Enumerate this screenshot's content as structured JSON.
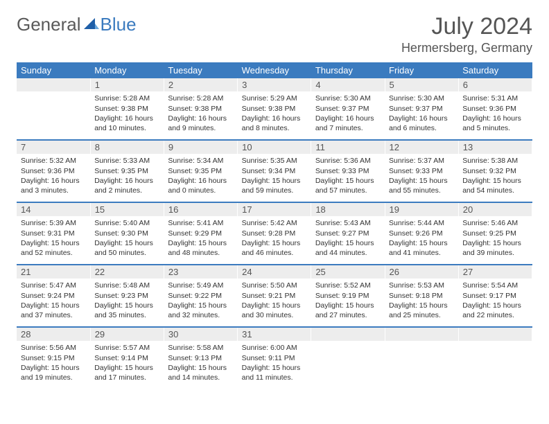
{
  "brand": {
    "part1": "General",
    "part2": "Blue"
  },
  "title": {
    "month": "July 2024",
    "location": "Hermersberg, Germany"
  },
  "colors": {
    "header_bg": "#3b7bbf",
    "header_fg": "#ffffff",
    "daynum_bg": "#ededed",
    "text": "#333333",
    "rule": "#3b7bbf"
  },
  "weekdays": [
    "Sunday",
    "Monday",
    "Tuesday",
    "Wednesday",
    "Thursday",
    "Friday",
    "Saturday"
  ],
  "weeks": [
    {
      "nums": [
        "",
        "1",
        "2",
        "3",
        "4",
        "5",
        "6"
      ],
      "cells": [
        null,
        {
          "sr": "Sunrise: 5:28 AM",
          "ss": "Sunset: 9:38 PM",
          "dl": "Daylight: 16 hours and 10 minutes."
        },
        {
          "sr": "Sunrise: 5:28 AM",
          "ss": "Sunset: 9:38 PM",
          "dl": "Daylight: 16 hours and 9 minutes."
        },
        {
          "sr": "Sunrise: 5:29 AM",
          "ss": "Sunset: 9:38 PM",
          "dl": "Daylight: 16 hours and 8 minutes."
        },
        {
          "sr": "Sunrise: 5:30 AM",
          "ss": "Sunset: 9:37 PM",
          "dl": "Daylight: 16 hours and 7 minutes."
        },
        {
          "sr": "Sunrise: 5:30 AM",
          "ss": "Sunset: 9:37 PM",
          "dl": "Daylight: 16 hours and 6 minutes."
        },
        {
          "sr": "Sunrise: 5:31 AM",
          "ss": "Sunset: 9:36 PM",
          "dl": "Daylight: 16 hours and 5 minutes."
        }
      ]
    },
    {
      "nums": [
        "7",
        "8",
        "9",
        "10",
        "11",
        "12",
        "13"
      ],
      "cells": [
        {
          "sr": "Sunrise: 5:32 AM",
          "ss": "Sunset: 9:36 PM",
          "dl": "Daylight: 16 hours and 3 minutes."
        },
        {
          "sr": "Sunrise: 5:33 AM",
          "ss": "Sunset: 9:35 PM",
          "dl": "Daylight: 16 hours and 2 minutes."
        },
        {
          "sr": "Sunrise: 5:34 AM",
          "ss": "Sunset: 9:35 PM",
          "dl": "Daylight: 16 hours and 0 minutes."
        },
        {
          "sr": "Sunrise: 5:35 AM",
          "ss": "Sunset: 9:34 PM",
          "dl": "Daylight: 15 hours and 59 minutes."
        },
        {
          "sr": "Sunrise: 5:36 AM",
          "ss": "Sunset: 9:33 PM",
          "dl": "Daylight: 15 hours and 57 minutes."
        },
        {
          "sr": "Sunrise: 5:37 AM",
          "ss": "Sunset: 9:33 PM",
          "dl": "Daylight: 15 hours and 55 minutes."
        },
        {
          "sr": "Sunrise: 5:38 AM",
          "ss": "Sunset: 9:32 PM",
          "dl": "Daylight: 15 hours and 54 minutes."
        }
      ]
    },
    {
      "nums": [
        "14",
        "15",
        "16",
        "17",
        "18",
        "19",
        "20"
      ],
      "cells": [
        {
          "sr": "Sunrise: 5:39 AM",
          "ss": "Sunset: 9:31 PM",
          "dl": "Daylight: 15 hours and 52 minutes."
        },
        {
          "sr": "Sunrise: 5:40 AM",
          "ss": "Sunset: 9:30 PM",
          "dl": "Daylight: 15 hours and 50 minutes."
        },
        {
          "sr": "Sunrise: 5:41 AM",
          "ss": "Sunset: 9:29 PM",
          "dl": "Daylight: 15 hours and 48 minutes."
        },
        {
          "sr": "Sunrise: 5:42 AM",
          "ss": "Sunset: 9:28 PM",
          "dl": "Daylight: 15 hours and 46 minutes."
        },
        {
          "sr": "Sunrise: 5:43 AM",
          "ss": "Sunset: 9:27 PM",
          "dl": "Daylight: 15 hours and 44 minutes."
        },
        {
          "sr": "Sunrise: 5:44 AM",
          "ss": "Sunset: 9:26 PM",
          "dl": "Daylight: 15 hours and 41 minutes."
        },
        {
          "sr": "Sunrise: 5:46 AM",
          "ss": "Sunset: 9:25 PM",
          "dl": "Daylight: 15 hours and 39 minutes."
        }
      ]
    },
    {
      "nums": [
        "21",
        "22",
        "23",
        "24",
        "25",
        "26",
        "27"
      ],
      "cells": [
        {
          "sr": "Sunrise: 5:47 AM",
          "ss": "Sunset: 9:24 PM",
          "dl": "Daylight: 15 hours and 37 minutes."
        },
        {
          "sr": "Sunrise: 5:48 AM",
          "ss": "Sunset: 9:23 PM",
          "dl": "Daylight: 15 hours and 35 minutes."
        },
        {
          "sr": "Sunrise: 5:49 AM",
          "ss": "Sunset: 9:22 PM",
          "dl": "Daylight: 15 hours and 32 minutes."
        },
        {
          "sr": "Sunrise: 5:50 AM",
          "ss": "Sunset: 9:21 PM",
          "dl": "Daylight: 15 hours and 30 minutes."
        },
        {
          "sr": "Sunrise: 5:52 AM",
          "ss": "Sunset: 9:19 PM",
          "dl": "Daylight: 15 hours and 27 minutes."
        },
        {
          "sr": "Sunrise: 5:53 AM",
          "ss": "Sunset: 9:18 PM",
          "dl": "Daylight: 15 hours and 25 minutes."
        },
        {
          "sr": "Sunrise: 5:54 AM",
          "ss": "Sunset: 9:17 PM",
          "dl": "Daylight: 15 hours and 22 minutes."
        }
      ]
    },
    {
      "nums": [
        "28",
        "29",
        "30",
        "31",
        "",
        "",
        ""
      ],
      "cells": [
        {
          "sr": "Sunrise: 5:56 AM",
          "ss": "Sunset: 9:15 PM",
          "dl": "Daylight: 15 hours and 19 minutes."
        },
        {
          "sr": "Sunrise: 5:57 AM",
          "ss": "Sunset: 9:14 PM",
          "dl": "Daylight: 15 hours and 17 minutes."
        },
        {
          "sr": "Sunrise: 5:58 AM",
          "ss": "Sunset: 9:13 PM",
          "dl": "Daylight: 15 hours and 14 minutes."
        },
        {
          "sr": "Sunrise: 6:00 AM",
          "ss": "Sunset: 9:11 PM",
          "dl": "Daylight: 15 hours and 11 minutes."
        },
        null,
        null,
        null
      ]
    }
  ]
}
